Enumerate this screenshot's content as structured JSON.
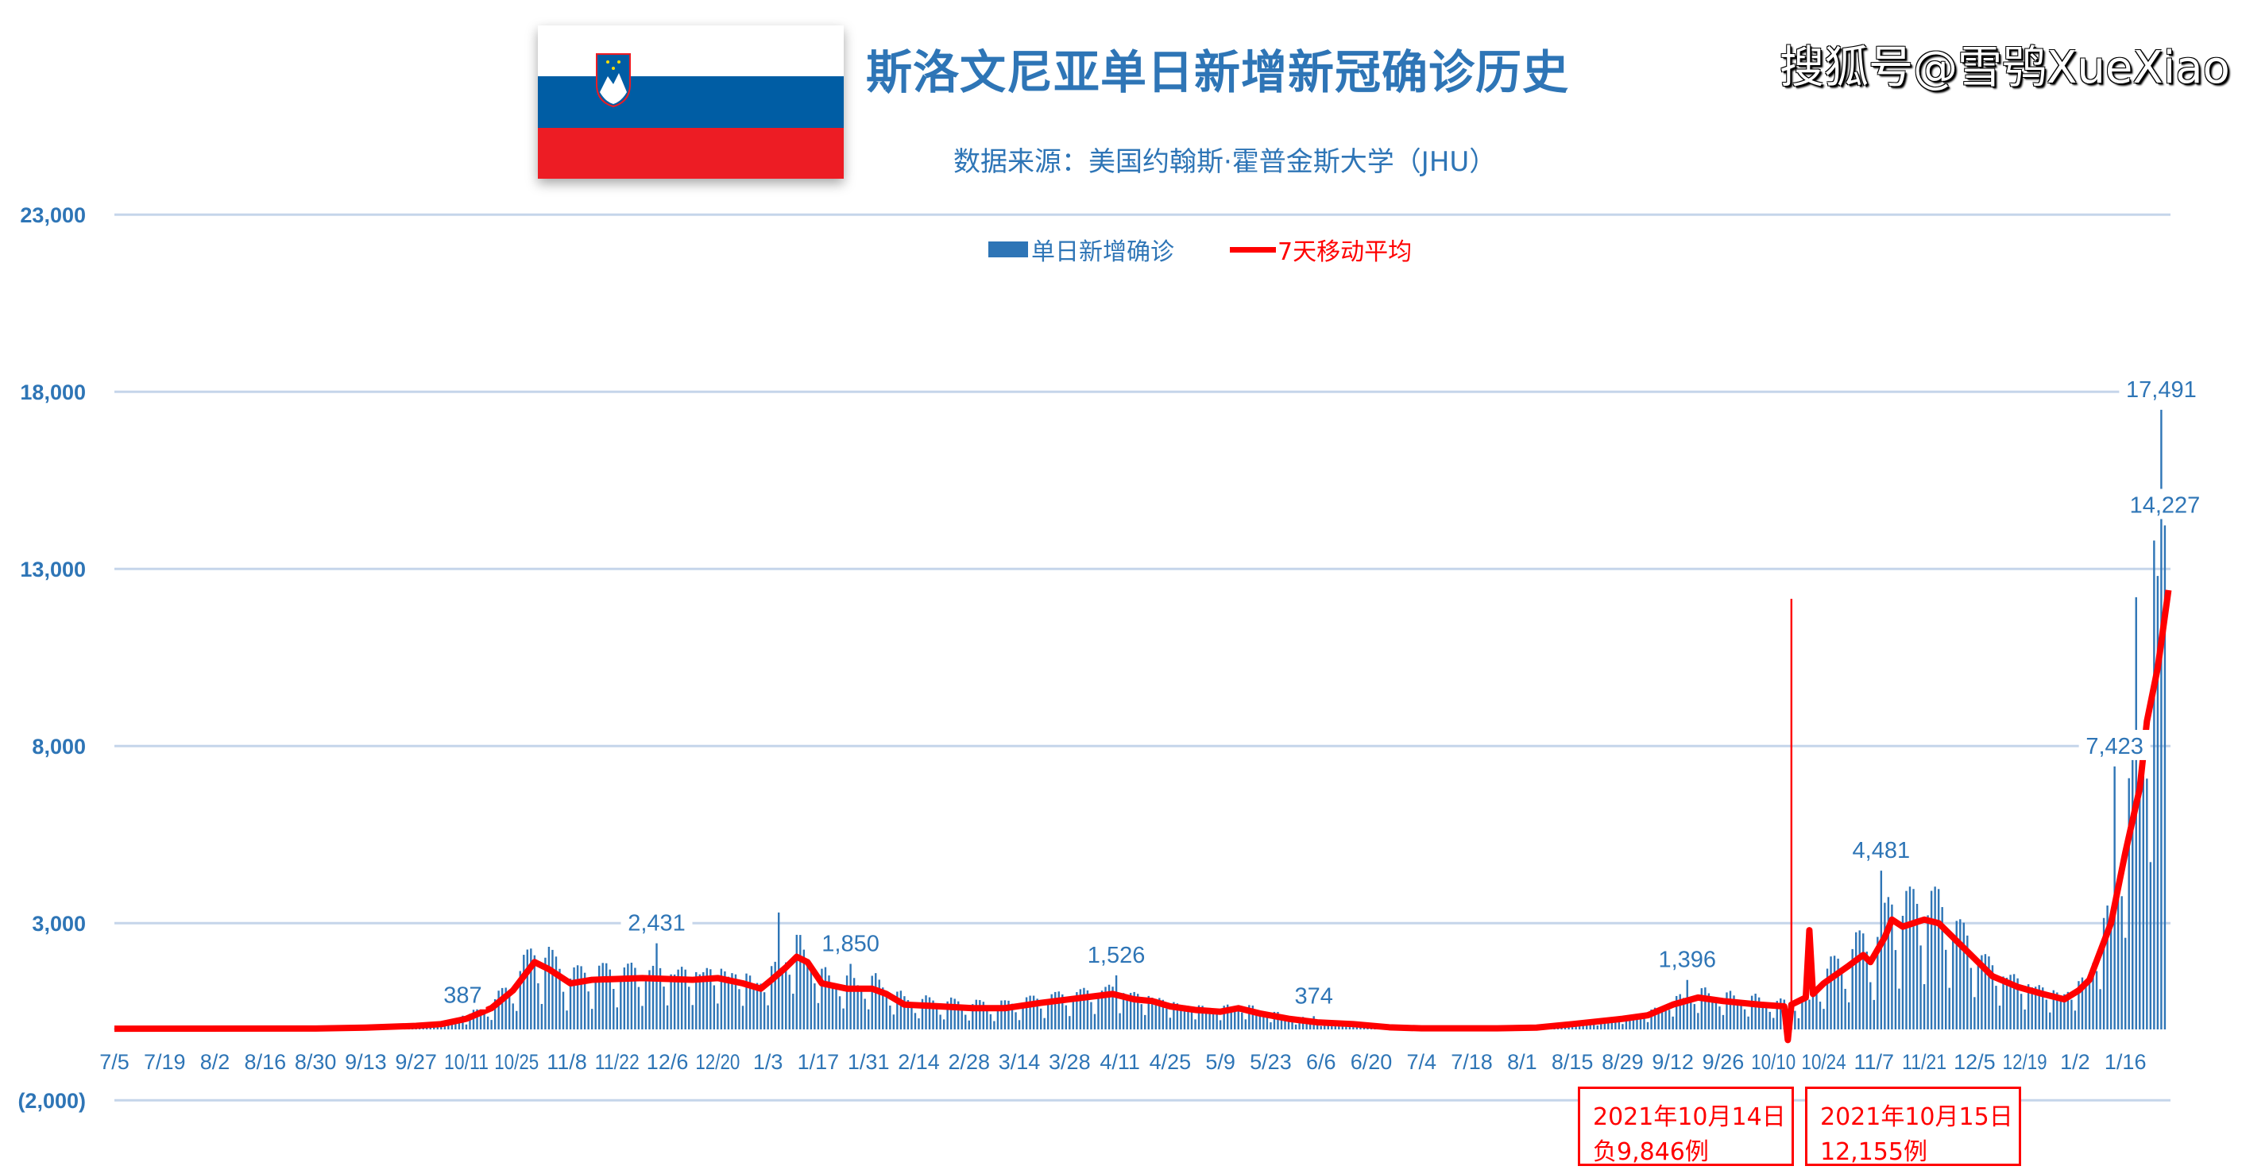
{
  "header": {
    "title": "斯洛文尼亚单日新增新冠确诊历史",
    "subtitle": "数据来源：美国约翰斯·霍普金斯大学（JHU）",
    "flag_colors": [
      "#ffffff",
      "#005da4",
      "#ed1c24"
    ]
  },
  "watermark": "搜狐号@雪鸮XueXiao",
  "annotations": [
    {
      "line1": "2021年10月14日",
      "line2": "负9,846例"
    },
    {
      "line1": "2021年10月15日",
      "line2": "12,155例"
    }
  ],
  "chart_data": {
    "type": "bar",
    "title": "斯洛文尼亚单日新增新冠确诊历史",
    "xlabel": "",
    "ylabel": "",
    "ylim": [
      -2000,
      23000
    ],
    "grid": true,
    "legend_position": "top-center",
    "colors": {
      "bars": "#2e75b6",
      "average": "#ff0000",
      "grid": "#c5d5ea",
      "axis_text": "#2e75b6"
    },
    "y_ticks": [
      23000,
      18000,
      13000,
      8000,
      3000,
      -2000
    ],
    "y_tick_labels": [
      "23,000",
      "18,000",
      "13,000",
      "8,000",
      "3,000",
      "(2,000)"
    ],
    "x_start": "2020-07-05",
    "x_end": "2022-01-28",
    "x_tick_labels": [
      "7/5",
      "7/19",
      "8/2",
      "8/16",
      "8/30",
      "9/13",
      "9/27",
      "10/11",
      "10/25",
      "11/8",
      "11/22",
      "12/6",
      "12/20",
      "1/3",
      "1/17",
      "1/31",
      "2/14",
      "2/28",
      "3/14",
      "3/28",
      "4/11",
      "4/25",
      "5/9",
      "5/23",
      "6/6",
      "6/20",
      "7/4",
      "7/18",
      "8/1",
      "8/15",
      "8/29",
      "9/12",
      "9/26",
      "10/10",
      "10/24",
      "11/7",
      "11/21",
      "12/5",
      "12/19",
      "1/2",
      "1/16"
    ],
    "series": [
      {
        "name": "单日新增确诊",
        "type": "bar",
        "note": "daily values approximated from 7-day average; labelled days exact",
        "labelled_points": [
          {
            "date": "2020-10-10",
            "value": 387,
            "label": "387"
          },
          {
            "date": "2020-12-03",
            "value": 2431,
            "label": "2,431"
          },
          {
            "date": "2021-01-26",
            "value": 1850,
            "label": "1,850"
          },
          {
            "date": "2021-04-10",
            "value": 1526,
            "label": "1,526"
          },
          {
            "date": "2021-06-04",
            "value": 374,
            "label": "374"
          },
          {
            "date": "2021-09-16",
            "value": 1396,
            "label": "1,396"
          },
          {
            "date": "2021-11-09",
            "value": 4481,
            "label": "4,481"
          },
          {
            "date": "2022-01-13",
            "value": 7423,
            "label": "7,423"
          },
          {
            "date": "2022-01-27",
            "value": 14227,
            "label": "14,227"
          },
          {
            "date": "2022-01-26",
            "value": 17491,
            "label": "17,491"
          }
        ],
        "special_points": [
          {
            "date": "2021-10-14",
            "value": -9846
          },
          {
            "date": "2021-10-15",
            "value": 12155
          },
          {
            "date": "2021-01-06",
            "value": 3300
          },
          {
            "date": "2022-01-19",
            "value": 12200
          },
          {
            "date": "2022-01-24",
            "value": 13800
          },
          {
            "date": "2022-01-25",
            "value": 12800
          }
        ]
      },
      {
        "name": "7天移动平均",
        "type": "line",
        "points": [
          [
            "2020-07-05",
            20
          ],
          [
            "2020-08-30",
            25
          ],
          [
            "2020-09-13",
            50
          ],
          [
            "2020-09-27",
            100
          ],
          [
            "2020-10-04",
            150
          ],
          [
            "2020-10-11",
            300
          ],
          [
            "2020-10-18",
            600
          ],
          [
            "2020-10-24",
            1100
          ],
          [
            "2020-10-30",
            1900
          ],
          [
            "2020-11-03",
            1700
          ],
          [
            "2020-11-09",
            1300
          ],
          [
            "2020-11-15",
            1400
          ],
          [
            "2020-11-29",
            1450
          ],
          [
            "2020-12-13",
            1400
          ],
          [
            "2020-12-20",
            1450
          ],
          [
            "2020-12-27",
            1300
          ],
          [
            "2021-01-01",
            1150
          ],
          [
            "2021-01-04",
            1400
          ],
          [
            "2021-01-08",
            1750
          ],
          [
            "2021-01-11",
            2050
          ],
          [
            "2021-01-14",
            1900
          ],
          [
            "2021-01-18",
            1300
          ],
          [
            "2021-01-25",
            1150
          ],
          [
            "2021-02-01",
            1150
          ],
          [
            "2021-02-05",
            1000
          ],
          [
            "2021-02-10",
            700
          ],
          [
            "2021-02-20",
            650
          ],
          [
            "2021-03-01",
            600
          ],
          [
            "2021-03-10",
            600
          ],
          [
            "2021-03-20",
            750
          ],
          [
            "2021-03-28",
            850
          ],
          [
            "2021-04-05",
            950
          ],
          [
            "2021-04-09",
            1000
          ],
          [
            "2021-04-15",
            850
          ],
          [
            "2021-04-20",
            800
          ],
          [
            "2021-04-25",
            650
          ],
          [
            "2021-05-02",
            550
          ],
          [
            "2021-05-09",
            500
          ],
          [
            "2021-05-14",
            600
          ],
          [
            "2021-05-20",
            450
          ],
          [
            "2021-05-28",
            300
          ],
          [
            "2021-06-05",
            200
          ],
          [
            "2021-06-15",
            150
          ],
          [
            "2021-06-25",
            60
          ],
          [
            "2021-07-04",
            30
          ],
          [
            "2021-07-25",
            30
          ],
          [
            "2021-08-05",
            50
          ],
          [
            "2021-08-15",
            150
          ],
          [
            "2021-08-29",
            300
          ],
          [
            "2021-09-05",
            400
          ],
          [
            "2021-09-12",
            700
          ],
          [
            "2021-09-19",
            900
          ],
          [
            "2021-09-26",
            800
          ],
          [
            "2021-10-06",
            700
          ],
          [
            "2021-10-13",
            650
          ],
          [
            "2021-10-14",
            -300
          ],
          [
            "2021-10-15",
            700
          ],
          [
            "2021-10-19",
            900
          ],
          [
            "2021-10-20",
            2800
          ],
          [
            "2021-10-21",
            1000
          ],
          [
            "2021-10-24",
            1300
          ],
          [
            "2021-10-31",
            1800
          ],
          [
            "2021-11-04",
            2100
          ],
          [
            "2021-11-06",
            1900
          ],
          [
            "2021-11-10",
            2600
          ],
          [
            "2021-11-12",
            3100
          ],
          [
            "2021-11-15",
            2900
          ],
          [
            "2021-11-21",
            3100
          ],
          [
            "2021-11-25",
            3000
          ],
          [
            "2021-11-30",
            2500
          ],
          [
            "2021-12-05",
            2000
          ],
          [
            "2021-12-10",
            1500
          ],
          [
            "2021-12-17",
            1200
          ],
          [
            "2021-12-24",
            1000
          ],
          [
            "2021-12-30",
            850
          ],
          [
            "2022-01-03",
            1100
          ],
          [
            "2022-01-06",
            1400
          ],
          [
            "2022-01-12",
            3000
          ],
          [
            "2022-01-16",
            5000
          ],
          [
            "2022-01-20",
            6800
          ],
          [
            "2022-01-22",
            8700
          ],
          [
            "2022-01-25",
            10200
          ],
          [
            "2022-01-28",
            12400
          ]
        ]
      }
    ]
  }
}
